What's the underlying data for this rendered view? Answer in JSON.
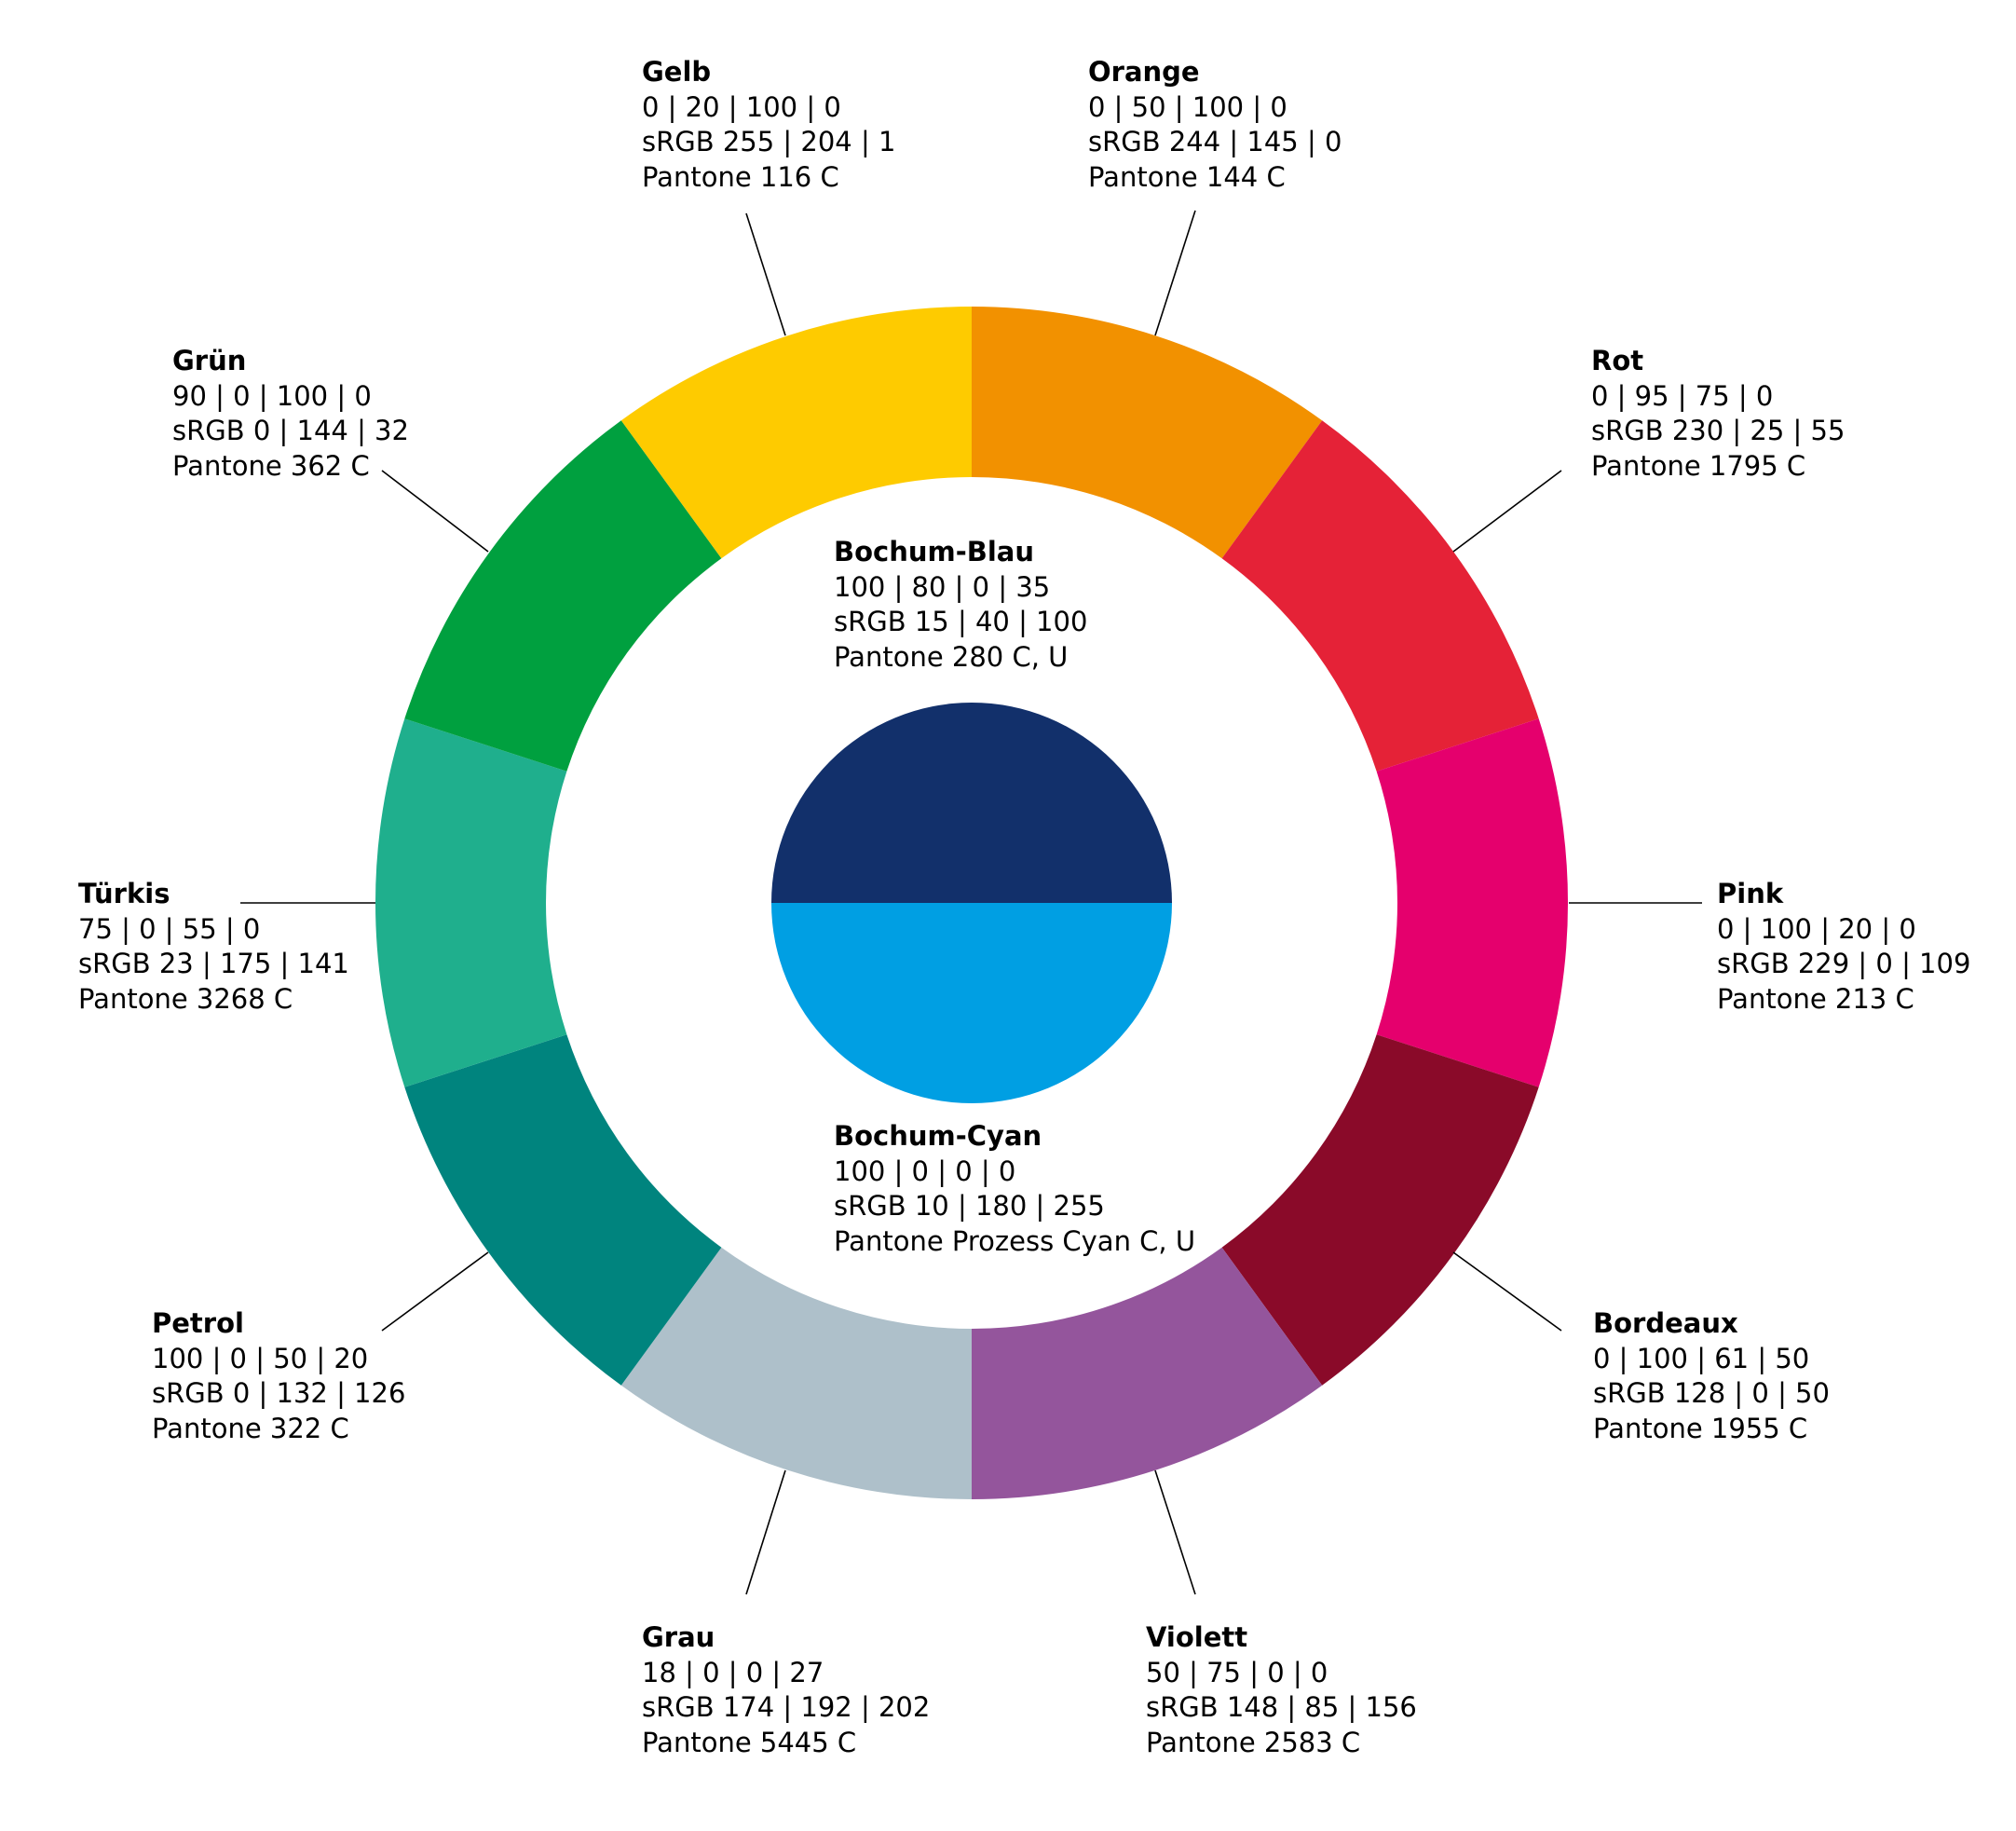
{
  "background": "#ffffff",
  "leader_color": "#000000",
  "segments": [
    {
      "id": "orange",
      "name": "Orange",
      "cmyk": "0 | 50 | 100 | 0",
      "srgb": "sRGB 244 | 145 | 0",
      "pantone": "Pantone 144 C",
      "color": "#f29100"
    },
    {
      "id": "rot",
      "name": "Rot",
      "cmyk": "0 | 95 | 75 | 0",
      "srgb": "sRGB 230 | 25 | 55",
      "pantone": "Pantone 1795 C",
      "color": "#e52237"
    },
    {
      "id": "pink",
      "name": "Pink",
      "cmyk": "0 | 100 | 20 | 0",
      "srgb": "sRGB 229 | 0 | 109",
      "pantone": "Pantone 213 C",
      "color": "#e5006d"
    },
    {
      "id": "bordeaux",
      "name": "Bordeaux",
      "cmyk": "0 | 100 | 61 | 50",
      "srgb": "sRGB 128 | 0 | 50",
      "pantone": "Pantone 1955 C",
      "color": "#8a0a29"
    },
    {
      "id": "violett",
      "name": "Violett",
      "cmyk": "50 | 75 | 0 | 0",
      "srgb": "sRGB 148 | 85 | 156",
      "pantone": "Pantone 2583 C",
      "color": "#94559c"
    },
    {
      "id": "grau",
      "name": "Grau",
      "cmyk": "18 | 0 | 0 | 27",
      "srgb": "sRGB 174 | 192 | 202",
      "pantone": "Pantone 5445 C",
      "color": "#aec0ca"
    },
    {
      "id": "petrol",
      "name": "Petrol",
      "cmyk": "100 | 0 | 50 | 20",
      "srgb": "sRGB 0 | 132 | 126",
      "pantone": "Pantone 322 C",
      "color": "#00847e"
    },
    {
      "id": "tuerkis",
      "name": "Türkis",
      "cmyk": "75 | 0 | 55 | 0",
      "srgb": "sRGB 23 | 175 | 141",
      "pantone": "Pantone 3268 C",
      "color": "#1faf8d"
    },
    {
      "id": "gruen",
      "name": "Grün",
      "cmyk": "90 | 0 | 100 | 0",
      "srgb": "sRGB 0 | 144 | 32",
      "pantone": "Pantone 362 C",
      "color": "#00a03f"
    },
    {
      "id": "gelb",
      "name": "Gelb",
      "cmyk": "0 | 20 | 100 | 0",
      "srgb": "sRGB 255 | 204 | 1",
      "pantone": "Pantone 116 C",
      "color": "#fecb00"
    }
  ],
  "center": {
    "blau": {
      "name": "Bochum-Blau",
      "cmyk": "100 | 80 | 0 | 35",
      "srgb": "sRGB 15 | 40 | 100",
      "pantone": "Pantone 280 C, U",
      "color": "#12306b"
    },
    "cyan": {
      "name": "Bochum-Cyan",
      "cmyk": "100 | 0 | 0 | 0",
      "srgb": "sRGB 10 | 180 | 255",
      "pantone": "Pantone Prozess Cyan C, U",
      "color": "#009fe3"
    }
  }
}
